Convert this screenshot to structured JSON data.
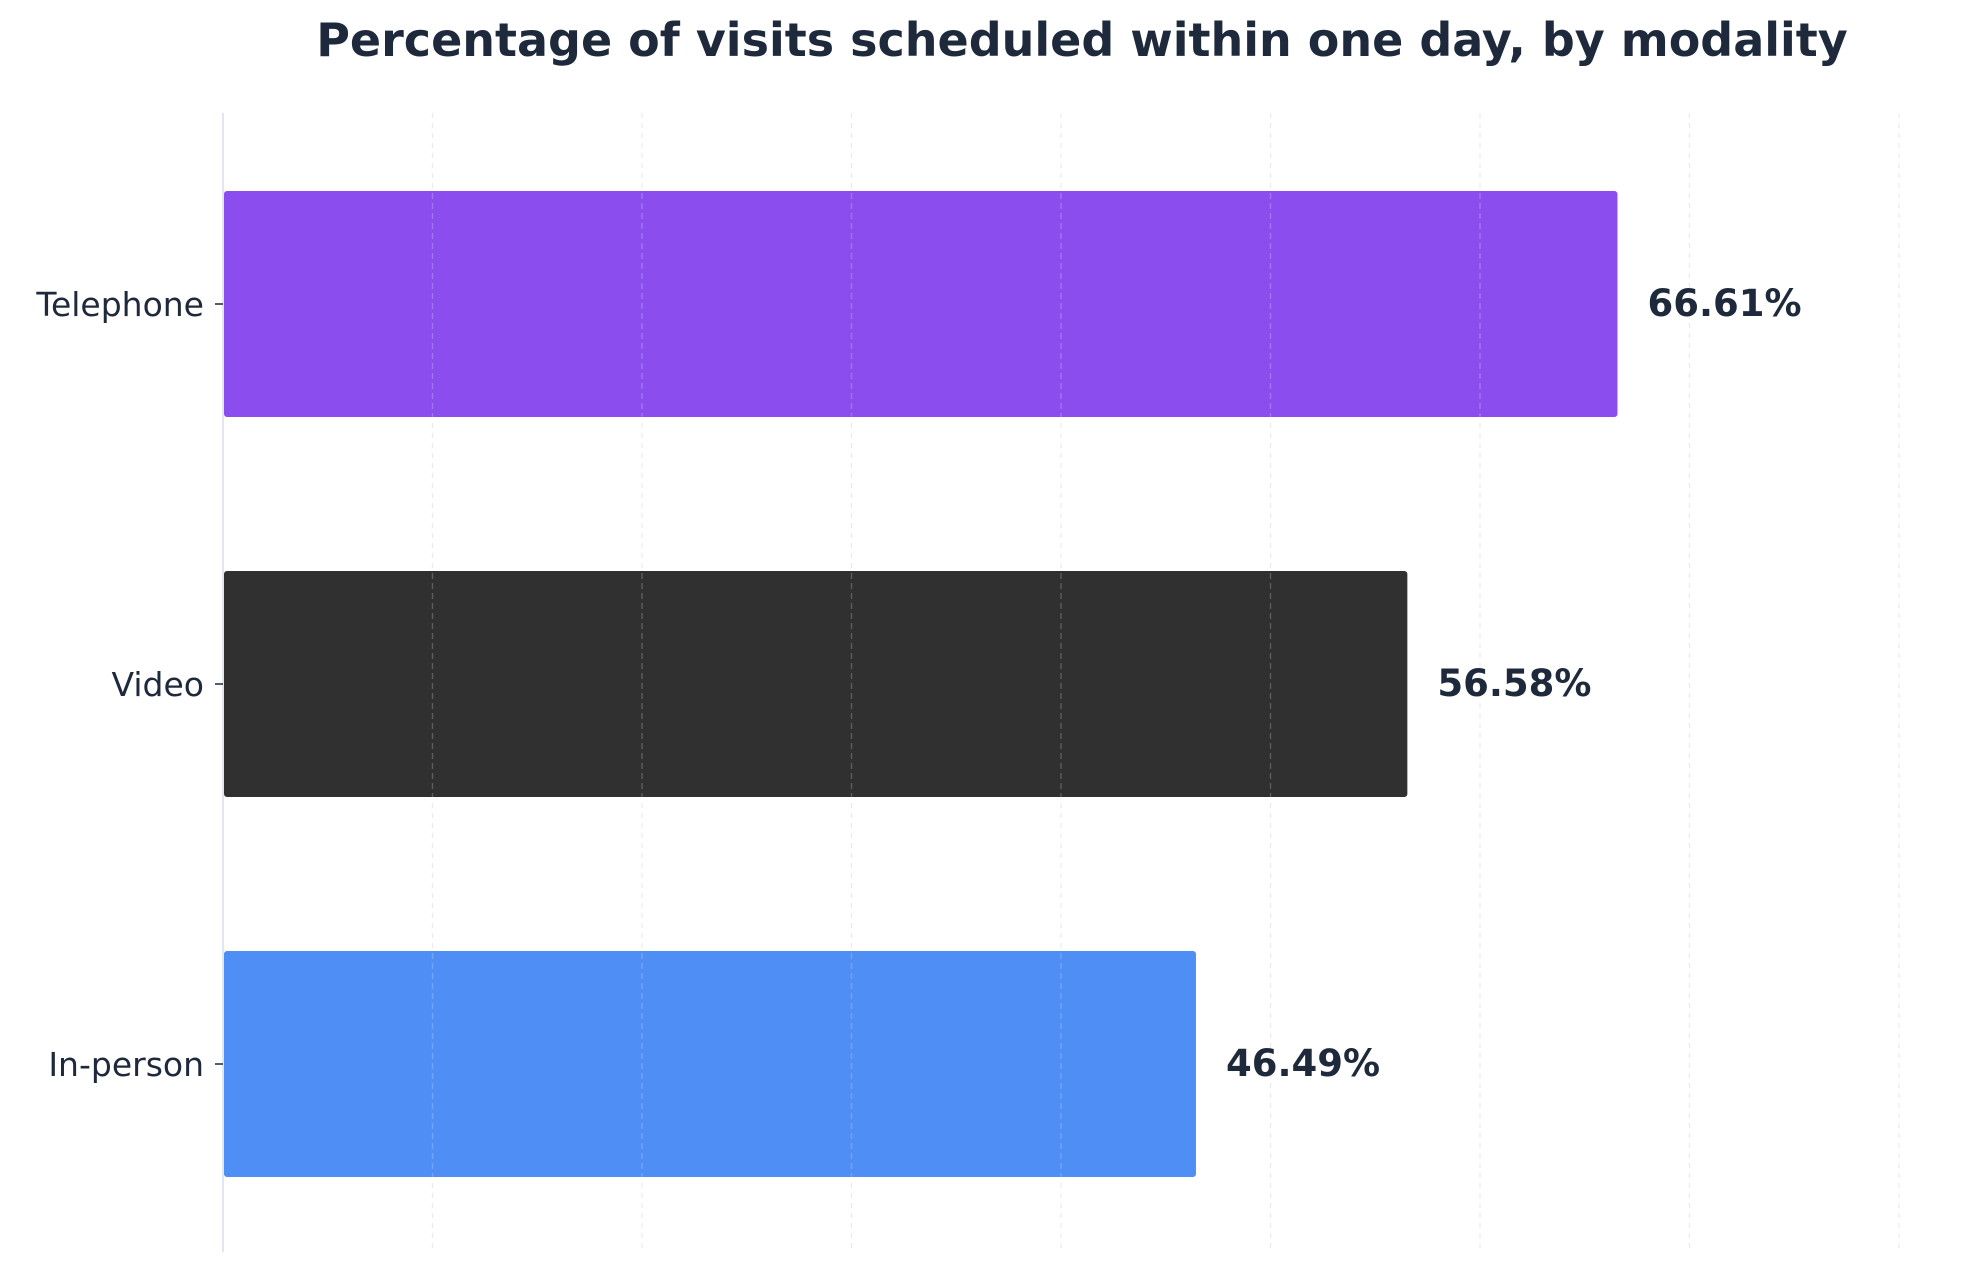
{
  "chart_data": {
    "type": "bar",
    "orientation": "horizontal",
    "title": "Percentage of visits scheduled within one day, by modality",
    "xlabel": "",
    "ylabel": "",
    "categories": [
      "Telephone",
      "Video",
      "In-person"
    ],
    "values": [
      66.61,
      56.58,
      46.49
    ],
    "value_labels": [
      "66.61%",
      "56.58%",
      "46.49%"
    ],
    "colors": [
      "#8b4ded",
      "#303030",
      "#4f8ef5"
    ],
    "xlim": [
      0,
      80
    ],
    "grid": true,
    "grid_style": "dashed vertical",
    "x_tick_labels_visible": false,
    "legend": "none"
  }
}
